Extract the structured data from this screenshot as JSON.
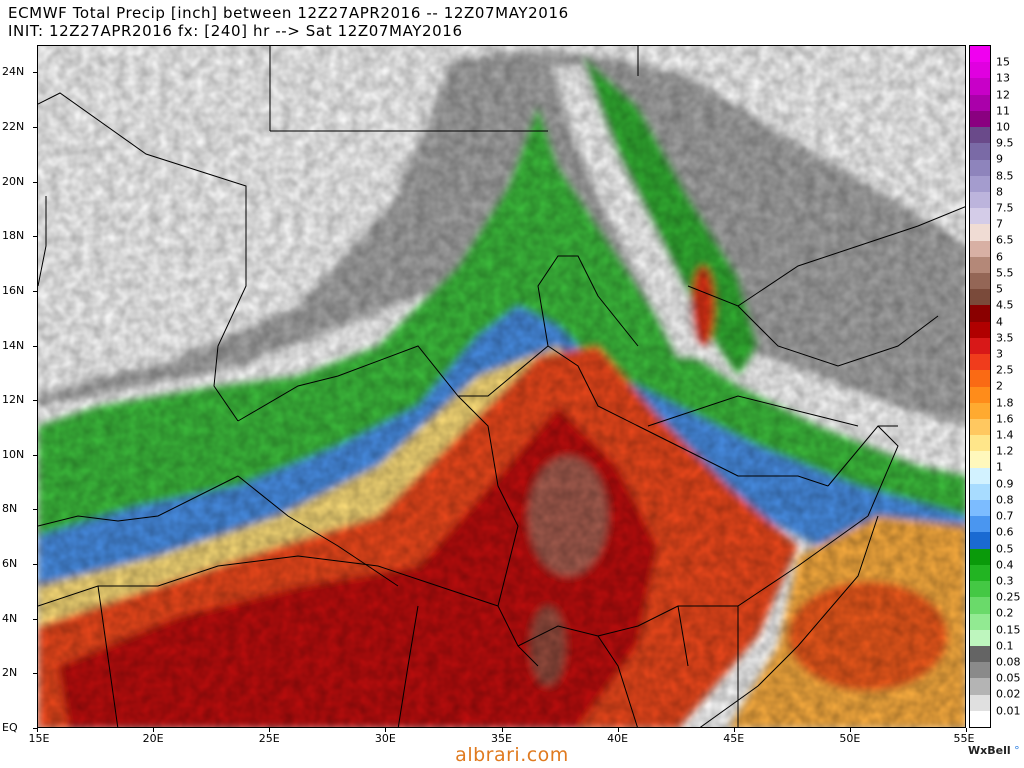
{
  "header": {
    "line1": "ECMWF Total Precip [inch] between 12Z27APR2016 -- 12Z07MAY2016",
    "line2": "INIT: 12Z27APR2016 fx: [240] hr --> Sat 12Z07MAY2016"
  },
  "axes": {
    "lat_labels": [
      "24N",
      "22N",
      "20N",
      "18N",
      "16N",
      "14N",
      "12N",
      "10N",
      "8N",
      "6N",
      "4N",
      "2N",
      "EQ"
    ],
    "lon_labels": [
      "15E",
      "20E",
      "25E",
      "30E",
      "35E",
      "40E",
      "45E",
      "50E",
      "55E"
    ],
    "lat_range": [
      0,
      25
    ],
    "lon_range": [
      15,
      55
    ]
  },
  "legend": {
    "labels": [
      "15",
      "13",
      "12",
      "11",
      "10",
      "9.5",
      "9",
      "8.5",
      "8",
      "7.5",
      "7",
      "6.5",
      "6",
      "5.5",
      "5",
      "4.5",
      "4",
      "3.5",
      "3",
      "2.5",
      "2",
      "1.8",
      "1.6",
      "1.4",
      "1.2",
      "1",
      "0.9",
      "0.8",
      "0.7",
      "0.6",
      "0.5",
      "0.4",
      "0.3",
      "0.25",
      "0.2",
      "0.15",
      "0.1",
      "0.08",
      "0.05",
      "0.02",
      "0.01"
    ],
    "colors": [
      "#f000f0",
      "#e000e0",
      "#c800c8",
      "#aa00aa",
      "#8a0080",
      "#6a4a8a",
      "#7a6aa6",
      "#8e84bc",
      "#a49cce",
      "#bcb4dc",
      "#d4cce8",
      "#f0dcd4",
      "#d8b0a4",
      "#b48878",
      "#946656",
      "#7a4a3a",
      "#8a0000",
      "#b00000",
      "#d81818",
      "#f03c1c",
      "#fa6a14",
      "#ff8c1a",
      "#ffaa30",
      "#ffc860",
      "#ffe68a",
      "#fff8bc",
      "#d2f2ff",
      "#a8dcff",
      "#7cbcff",
      "#4a96f0",
      "#1a6ad2",
      "#0a9a0a",
      "#22b422",
      "#44c844",
      "#6ada6a",
      "#92ea92",
      "#bef6be",
      "#646464",
      "#8a8a8a",
      "#b4b4b4",
      "#e0e0e0",
      "#ffffff"
    ]
  },
  "credit": {
    "brand": "WxBell",
    "mark": "°"
  },
  "watermark": "albrari.com"
}
